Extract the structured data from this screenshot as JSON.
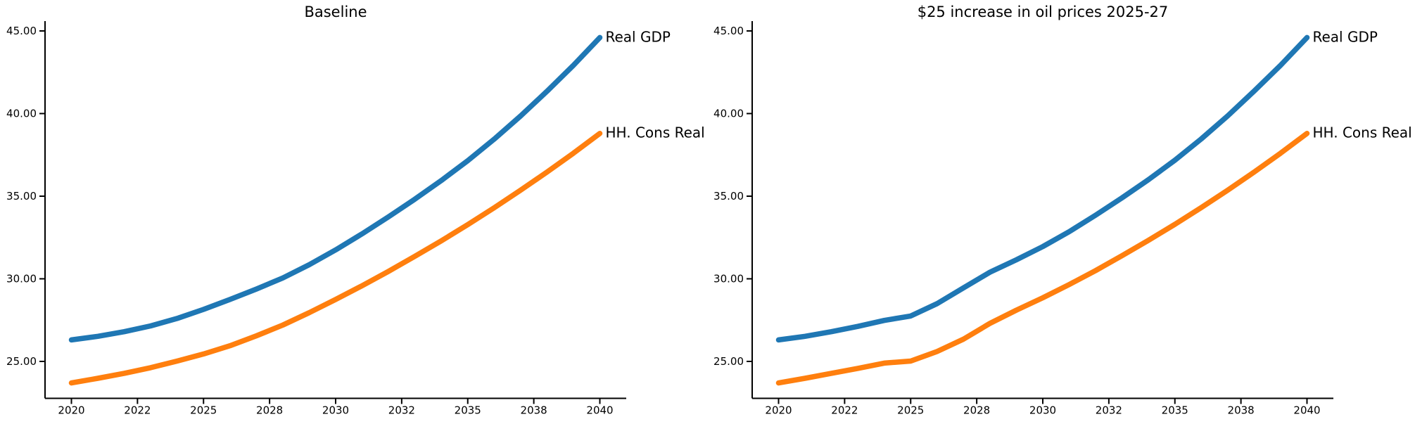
{
  "figure": {
    "background": "#ffffff",
    "text_color": "#000000"
  },
  "chart_data": [
    {
      "type": "line",
      "title": "Baseline",
      "xlabel": "",
      "ylabel": "",
      "xlim": [
        2019.0,
        2041.0
      ],
      "ylim": [
        22.8,
        45.6
      ],
      "grid": false,
      "legend_position": "end-of-line-labels",
      "x": [
        2020,
        2021,
        2022,
        2023,
        2024,
        2025,
        2026,
        2027,
        2028,
        2029,
        2030,
        2031,
        2032,
        2033,
        2034,
        2035,
        2036,
        2037,
        2038,
        2039,
        2040
      ],
      "series": [
        {
          "name": "Real GDP",
          "color": "#1f77b4",
          "values": [
            26.3,
            26.52,
            26.8,
            27.15,
            27.6,
            28.15,
            28.75,
            29.38,
            30.05,
            30.85,
            31.75,
            32.72,
            33.75,
            34.82,
            35.95,
            37.15,
            38.45,
            39.85,
            41.35,
            42.92,
            44.6
          ]
        },
        {
          "name": "HH. Cons Real",
          "color": "#ff7f0e",
          "values": [
            23.7,
            23.98,
            24.28,
            24.62,
            25.02,
            25.45,
            25.95,
            26.55,
            27.2,
            27.95,
            28.75,
            29.58,
            30.45,
            31.36,
            32.3,
            33.28,
            34.3,
            35.36,
            36.46,
            37.6,
            38.8
          ]
        }
      ],
      "yticks": [
        {
          "label": "25.00",
          "value": 25
        },
        {
          "label": "30.00",
          "value": 30
        },
        {
          "label": "35.00",
          "value": 35
        },
        {
          "label": "40.00",
          "value": 40
        },
        {
          "label": "45.00",
          "value": 45
        }
      ],
      "xticks": [
        {
          "label": "2020",
          "value": 2020
        },
        {
          "label": "2022",
          "value": 2022.5
        },
        {
          "label": "2025",
          "value": 2025
        },
        {
          "label": "2028",
          "value": 2027.5
        },
        {
          "label": "2030",
          "value": 2030
        },
        {
          "label": "2032",
          "value": 2032.5
        },
        {
          "label": "2035",
          "value": 2035
        },
        {
          "label": "2038",
          "value": 2037.5
        },
        {
          "label": "2040",
          "value": 2040
        }
      ]
    },
    {
      "type": "line",
      "title": "$25 increase in oil prices 2025-27",
      "xlabel": "",
      "ylabel": "",
      "xlim": [
        2019.0,
        2041.0
      ],
      "ylim": [
        22.8,
        45.6
      ],
      "grid": false,
      "legend_position": "end-of-line-labels",
      "x": [
        2020,
        2021,
        2022,
        2023,
        2024,
        2025,
        2026,
        2027,
        2028,
        2029,
        2030,
        2031,
        2032,
        2033,
        2034,
        2035,
        2036,
        2037,
        2038,
        2039,
        2040
      ],
      "series": [
        {
          "name": "Real GDP",
          "color": "#1f77b4",
          "values": [
            26.3,
            26.52,
            26.8,
            27.12,
            27.48,
            27.75,
            28.5,
            29.45,
            30.4,
            31.15,
            31.95,
            32.85,
            33.85,
            34.9,
            36.0,
            37.18,
            38.47,
            39.86,
            41.36,
            42.92,
            44.6
          ]
        },
        {
          "name": "HH. Cons Real",
          "color": "#ff7f0e",
          "values": [
            23.7,
            23.98,
            24.28,
            24.58,
            24.9,
            25.02,
            25.6,
            26.35,
            27.3,
            28.1,
            28.85,
            29.65,
            30.5,
            31.4,
            32.33,
            33.3,
            34.31,
            35.36,
            36.46,
            37.6,
            38.8
          ]
        }
      ],
      "yticks": [
        {
          "label": "25.00",
          "value": 25
        },
        {
          "label": "30.00",
          "value": 30
        },
        {
          "label": "35.00",
          "value": 35
        },
        {
          "label": "40.00",
          "value": 40
        },
        {
          "label": "45.00",
          "value": 45
        }
      ],
      "xticks": [
        {
          "label": "2020",
          "value": 2020
        },
        {
          "label": "2022",
          "value": 2022.5
        },
        {
          "label": "2025",
          "value": 2025
        },
        {
          "label": "2028",
          "value": 2027.5
        },
        {
          "label": "2030",
          "value": 2030
        },
        {
          "label": "2032",
          "value": 2032.5
        },
        {
          "label": "2035",
          "value": 2035
        },
        {
          "label": "2038",
          "value": 2037.5
        },
        {
          "label": "2040",
          "value": 2040
        }
      ]
    }
  ]
}
